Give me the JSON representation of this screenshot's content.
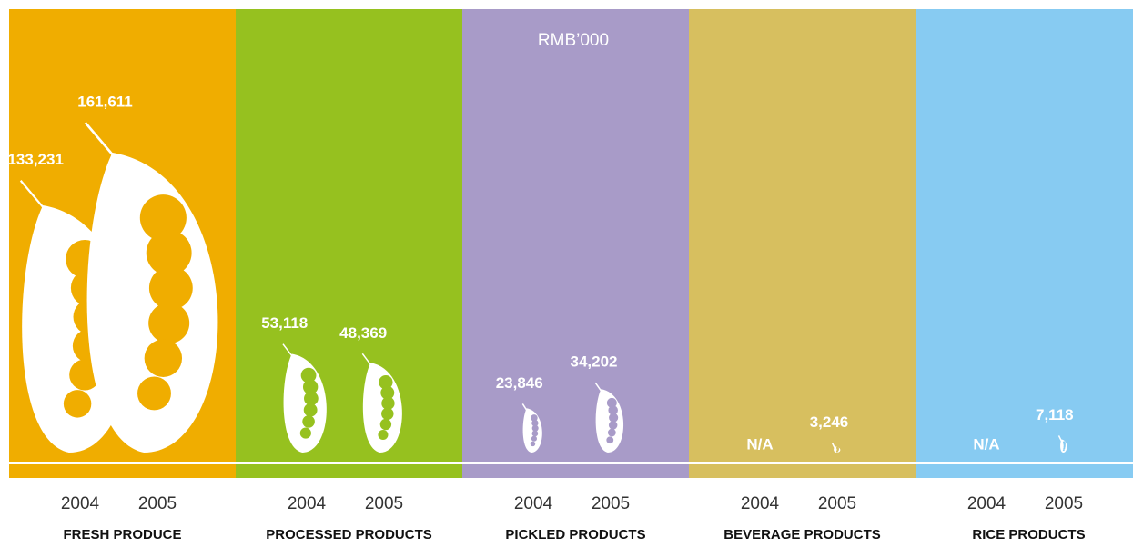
{
  "chart_data": {
    "type": "pictogram",
    "unit": "RMB’000",
    "groups": [
      {
        "name": "FRESH PRODUCE",
        "color": "#f0ad00",
        "years": [
          "2004",
          "2005"
        ],
        "values": [
          133231,
          161611
        ],
        "value_labels": [
          "133,231",
          "161,611"
        ]
      },
      {
        "name": "PROCESSED PRODUCTS",
        "color": "#96c11f",
        "years": [
          "2004",
          "2005"
        ],
        "values": [
          53118,
          48369
        ],
        "value_labels": [
          "53,118",
          "48,369"
        ]
      },
      {
        "name": "PICKLED PRODUCTS",
        "color": "#a89bc8",
        "years": [
          "2004",
          "2005"
        ],
        "values": [
          23846,
          34202
        ],
        "value_labels": [
          "23,846",
          "34,202"
        ]
      },
      {
        "name": "BEVERAGE PRODUCTS",
        "color": "#d7bf5f",
        "years": [
          "2004",
          "2005"
        ],
        "values": [
          null,
          3246
        ],
        "value_labels": [
          "N/A",
          "3,246"
        ]
      },
      {
        "name": "RICE PRODUCTS",
        "color": "#87cbf2",
        "years": [
          "2004",
          "2005"
        ],
        "values": [
          null,
          7118
        ],
        "value_labels": [
          "N/A",
          "7,118"
        ]
      }
    ]
  }
}
